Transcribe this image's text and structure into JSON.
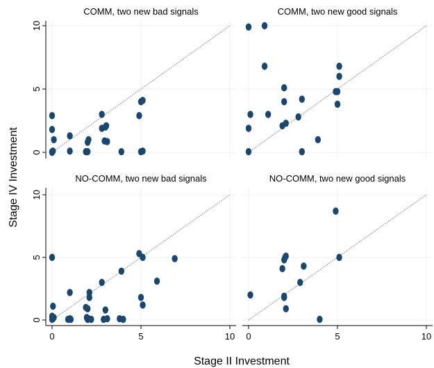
{
  "chart_data": {
    "type": "scatter",
    "xlabel": "Stage II Investment",
    "ylabel": "Stage IV Investment",
    "xlim": [
      0,
      10
    ],
    "ylim": [
      0,
      10
    ],
    "xticks": [
      "0",
      "5",
      "10"
    ],
    "yticks": [
      "0",
      "5",
      "10"
    ],
    "reference_line": "45-degree",
    "grid": true,
    "colors": {
      "marker": "#1a476f",
      "reference": "#8c8c8c",
      "grid": "#eaf2f3"
    },
    "panels": [
      {
        "title": "COMM, two new bad signals",
        "points": [
          [
            0,
            0
          ],
          [
            0,
            0.05
          ],
          [
            0.05,
            0.1
          ],
          [
            0,
            2.9
          ],
          [
            0,
            1.8
          ],
          [
            0.1,
            1.0
          ],
          [
            1.0,
            1.3
          ],
          [
            1.0,
            0.1
          ],
          [
            1.9,
            0.05
          ],
          [
            2.0,
            0.8
          ],
          [
            2.05,
            1.0
          ],
          [
            2.0,
            0.05
          ],
          [
            2.8,
            3.0
          ],
          [
            2.8,
            1.9
          ],
          [
            3.0,
            2.0
          ],
          [
            3.05,
            2.1
          ],
          [
            2.95,
            0.9
          ],
          [
            3.1,
            0.85
          ],
          [
            3.9,
            0.05
          ],
          [
            4.9,
            2.9
          ],
          [
            5.0,
            4.0
          ],
          [
            5.1,
            4.1
          ],
          [
            5.0,
            0.05
          ],
          [
            5.1,
            0.1
          ]
        ]
      },
      {
        "title": "COMM, two new good signals",
        "points": [
          [
            0,
            9.9
          ],
          [
            0.9,
            10.0
          ],
          [
            0.9,
            6.8
          ],
          [
            0.1,
            3.0
          ],
          [
            0,
            1.9
          ],
          [
            0,
            0.05
          ],
          [
            1.1,
            3.0
          ],
          [
            1.9,
            2.1
          ],
          [
            2.1,
            2.3
          ],
          [
            2.0,
            5.1
          ],
          [
            2.0,
            4.0
          ],
          [
            2.8,
            2.8
          ],
          [
            3.0,
            4.2
          ],
          [
            3.0,
            0.05
          ],
          [
            3.9,
            1.0
          ],
          [
            4.9,
            4.8
          ],
          [
            5.0,
            4.8
          ],
          [
            5.0,
            3.8
          ],
          [
            5.1,
            6.8
          ],
          [
            5.1,
            6.0
          ]
        ]
      },
      {
        "title": "NO-COMM, two new bad signals",
        "points": [
          [
            0,
            5.0
          ],
          [
            0.05,
            1.1
          ],
          [
            0,
            0.3
          ],
          [
            0.05,
            0.1
          ],
          [
            0.1,
            0.2
          ],
          [
            0,
            0.05
          ],
          [
            0.9,
            0.05
          ],
          [
            1.0,
            0.1
          ],
          [
            1.05,
            0.05
          ],
          [
            1.0,
            2.2
          ],
          [
            1.9,
            1.0
          ],
          [
            1.95,
            0.2
          ],
          [
            2.0,
            0.05
          ],
          [
            2.05,
            0.1
          ],
          [
            2.0,
            0.9
          ],
          [
            2.1,
            1.8
          ],
          [
            2.1,
            2.2
          ],
          [
            2.2,
            0.05
          ],
          [
            2.8,
            3.0
          ],
          [
            2.9,
            0.05
          ],
          [
            3.0,
            0.8
          ],
          [
            3.1,
            0.1
          ],
          [
            3.8,
            0.1
          ],
          [
            4.0,
            0.05
          ],
          [
            3.9,
            3.9
          ],
          [
            4.9,
            5.3
          ],
          [
            5.0,
            1.8
          ],
          [
            5.1,
            5.0
          ],
          [
            5.1,
            1.2
          ],
          [
            5.9,
            3.1
          ],
          [
            6.9,
            4.9
          ]
        ]
      },
      {
        "title": "NO-COMM, two new good signals",
        "points": [
          [
            0.1,
            2.0
          ],
          [
            1.9,
            4.1
          ],
          [
            2.0,
            1.8
          ],
          [
            2.0,
            1.9
          ],
          [
            2.0,
            4.8
          ],
          [
            2.05,
            5.0
          ],
          [
            2.1,
            5.1
          ],
          [
            2.1,
            0.9
          ],
          [
            2.9,
            3.0
          ],
          [
            3.1,
            4.3
          ],
          [
            4.0,
            0.05
          ],
          [
            4.9,
            8.7
          ],
          [
            5.1,
            5.0
          ]
        ]
      }
    ]
  }
}
